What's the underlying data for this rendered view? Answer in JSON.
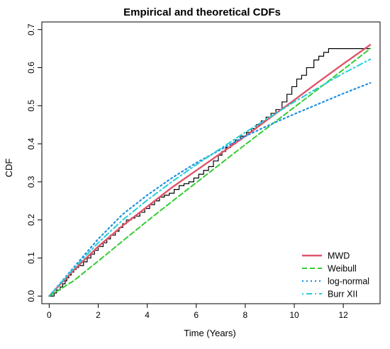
{
  "chart_data": {
    "type": "line",
    "title": "Empirical and theoretical CDFs",
    "xlabel": "Time (Years)",
    "ylabel": "CDF",
    "xlim": [
      -0.3,
      13.5
    ],
    "ylim": [
      -0.02,
      0.72
    ],
    "xticks": [
      0,
      2,
      4,
      6,
      8,
      10,
      12
    ],
    "yticks": [
      0.0,
      0.1,
      0.2,
      0.3,
      0.4,
      0.5,
      0.6,
      0.7
    ],
    "xtick_labels": [
      "0",
      "2",
      "4",
      "6",
      "8",
      "10",
      "12"
    ],
    "ytick_labels": [
      "0.0",
      "0.1",
      "0.2",
      "0.3",
      "0.4",
      "0.5",
      "0.6",
      "0.7"
    ],
    "legend_position": "bottom-right",
    "empirical": {
      "color": "#000000",
      "steps": [
        [
          0.0,
          0.0
        ],
        [
          0.2,
          0.008
        ],
        [
          0.3,
          0.016
        ],
        [
          0.45,
          0.024
        ],
        [
          0.55,
          0.032
        ],
        [
          0.65,
          0.04
        ],
        [
          0.72,
          0.048
        ],
        [
          0.8,
          0.055
        ],
        [
          0.9,
          0.063
        ],
        [
          1.0,
          0.07
        ],
        [
          1.1,
          0.075
        ],
        [
          1.2,
          0.08
        ],
        [
          1.4,
          0.09
        ],
        [
          1.55,
          0.1
        ],
        [
          1.7,
          0.11
        ],
        [
          1.85,
          0.12
        ],
        [
          2.0,
          0.13
        ],
        [
          2.2,
          0.14
        ],
        [
          2.35,
          0.15
        ],
        [
          2.5,
          0.16
        ],
        [
          2.7,
          0.17
        ],
        [
          2.85,
          0.18
        ],
        [
          3.0,
          0.19
        ],
        [
          3.15,
          0.2
        ],
        [
          3.35,
          0.205
        ],
        [
          3.5,
          0.21
        ],
        [
          3.7,
          0.22
        ],
        [
          3.9,
          0.23
        ],
        [
          4.1,
          0.24
        ],
        [
          4.3,
          0.25
        ],
        [
          4.5,
          0.26
        ],
        [
          4.7,
          0.265
        ],
        [
          4.9,
          0.27
        ],
        [
          5.1,
          0.28
        ],
        [
          5.3,
          0.29
        ],
        [
          5.5,
          0.295
        ],
        [
          5.7,
          0.3
        ],
        [
          5.9,
          0.31
        ],
        [
          6.1,
          0.32
        ],
        [
          6.3,
          0.33
        ],
        [
          6.5,
          0.34
        ],
        [
          6.7,
          0.355
        ],
        [
          6.9,
          0.37
        ],
        [
          7.05,
          0.38
        ],
        [
          7.2,
          0.39
        ],
        [
          7.4,
          0.4
        ],
        [
          7.6,
          0.41
        ],
        [
          7.8,
          0.42
        ],
        [
          8.05,
          0.43
        ],
        [
          8.25,
          0.44
        ],
        [
          8.45,
          0.45
        ],
        [
          8.65,
          0.46
        ],
        [
          8.85,
          0.47
        ],
        [
          9.05,
          0.48
        ],
        [
          9.25,
          0.49
        ],
        [
          9.5,
          0.51
        ],
        [
          9.7,
          0.53
        ],
        [
          9.9,
          0.55
        ],
        [
          10.1,
          0.57
        ],
        [
          10.3,
          0.58
        ],
        [
          10.5,
          0.6
        ],
        [
          10.8,
          0.62
        ],
        [
          11.0,
          0.63
        ],
        [
          11.2,
          0.64
        ],
        [
          11.4,
          0.65
        ],
        [
          13.1,
          0.65
        ]
      ]
    },
    "series": [
      {
        "name": "MWD",
        "color": "#df536b",
        "dash": "solid",
        "x": [
          0,
          1,
          2,
          3,
          4,
          5,
          6,
          7,
          8,
          9,
          10,
          11,
          12,
          13.1
        ],
        "y": [
          0.0,
          0.068,
          0.13,
          0.185,
          0.235,
          0.285,
          0.33,
          0.375,
          0.42,
          0.468,
          0.515,
          0.563,
          0.61,
          0.66
        ]
      },
      {
        "name": "Weibull",
        "color": "#33cc33",
        "dash": "dashed",
        "x": [
          0,
          1,
          2,
          3,
          4,
          5,
          6,
          7,
          8,
          9,
          10,
          11,
          12,
          13.1
        ],
        "y": [
          0.0,
          0.04,
          0.092,
          0.145,
          0.197,
          0.248,
          0.298,
          0.348,
          0.398,
          0.447,
          0.496,
          0.545,
          0.595,
          0.65
        ]
      },
      {
        "name": "log-normal",
        "color": "#1f8fe0",
        "dash": "dotted",
        "x": [
          0,
          1,
          2,
          3,
          4,
          5,
          6,
          7,
          8,
          9,
          10,
          11,
          12,
          13.1
        ],
        "y": [
          0.0,
          0.075,
          0.15,
          0.215,
          0.265,
          0.31,
          0.35,
          0.385,
          0.42,
          0.45,
          0.478,
          0.505,
          0.532,
          0.56
        ]
      },
      {
        "name": "Burr XII",
        "color": "#22cfd6",
        "dash": "dotdash",
        "x": [
          0,
          1,
          2,
          3,
          4,
          5,
          6,
          7,
          8,
          9,
          10,
          11,
          12,
          13.1
        ],
        "y": [
          0.0,
          0.072,
          0.14,
          0.2,
          0.252,
          0.3,
          0.345,
          0.388,
          0.43,
          0.47,
          0.51,
          0.548,
          0.585,
          0.622
        ]
      }
    ]
  }
}
